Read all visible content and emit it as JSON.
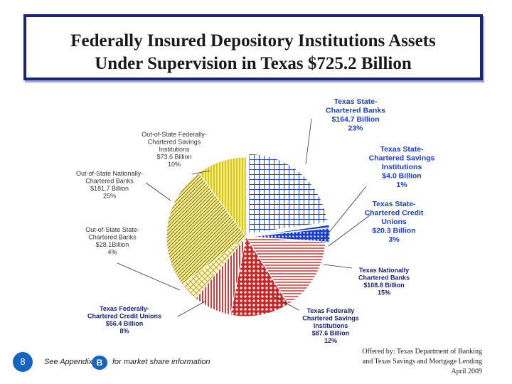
{
  "title": {
    "line1": "Federally Insured Depository Institutions Assets",
    "line2": "Under Supervision in Texas $725.2 Billion"
  },
  "colors": {
    "title_border": "#1a237e",
    "slide_num_bg": "#1565c0"
  },
  "chart_data": {
    "type": "pie",
    "title": "Federally Insured Depository Institutions Assets Under Supervision in Texas $725.2 Billion",
    "slices": [
      {
        "key": "texas_state_banks",
        "lines": [
          "Texas State-",
          "Chartered Banks",
          "$164.7 Billion",
          "23%"
        ],
        "value": 164.7,
        "percent": 23,
        "color": "#1a3fd1",
        "pattern": "grid-blue",
        "label_color": "#1a3fd1"
      },
      {
        "key": "texas_state_savings",
        "lines": [
          "Texas State-",
          "Chartered Savings",
          "Institutions",
          "$4.0 Billion",
          "1%"
        ],
        "value": 4.0,
        "percent": 1,
        "color": "#1a3fd1",
        "pattern": "solid-blue",
        "label_color": "#1a3fd1"
      },
      {
        "key": "texas_state_credit_unions",
        "lines": [
          "Texas State-",
          "Chartered Credit",
          "Unions",
          "$20.3 Billion",
          "3%"
        ],
        "value": 20.3,
        "percent": 3,
        "color": "#1a3fd1",
        "pattern": "dots-blue",
        "label_color": "#1a3fd1"
      },
      {
        "key": "texas_national_banks",
        "lines": [
          "Texas Nationally",
          "Chartered Banks",
          "$108.8 Billion",
          "15%"
        ],
        "value": 108.8,
        "percent": 15,
        "color": "#c62828",
        "pattern": "hlines-red",
        "label_color": "#1a237e"
      },
      {
        "key": "texas_federal_savings",
        "lines": [
          "Texas Federally",
          "Chartered Savings",
          "Institutions",
          "$87.6 Billion",
          "12%"
        ],
        "value": 87.6,
        "percent": 12,
        "color": "#c62828",
        "pattern": "dots-red",
        "label_color": "#1a237e"
      },
      {
        "key": "texas_federal_credit_unions",
        "lines": [
          "Texas Federally-",
          "Chartered Credit Unions",
          "$56.4 Billion",
          "8%"
        ],
        "value": 56.4,
        "percent": 8,
        "color": "#c62828",
        "pattern": "vlines-red",
        "label_color": "#1a237e"
      },
      {
        "key": "oos_state_banks",
        "lines": [
          "Out-of-State State-",
          "Chartered Banks",
          "$28.1Billion",
          "4%"
        ],
        "value": 28.1,
        "percent": 4,
        "color": "#e8d94a",
        "pattern": "cross-yellow",
        "label_color": "#333333"
      },
      {
        "key": "oos_national_banks",
        "lines": [
          "Out-of-State Nationally-",
          "Chartered Banks",
          "$181.7 Billion",
          "25%"
        ],
        "value": 181.7,
        "percent": 25,
        "color": "#d9c93a",
        "pattern": "diag-yellow",
        "label_color": "#333333"
      },
      {
        "key": "oos_federal_savings",
        "lines": [
          "Out-of-State Federally-",
          "Chartered Savings",
          "Institutions",
          "$73.6 Billion",
          "10%"
        ],
        "value": 73.6,
        "percent": 10,
        "color": "#e8d94a",
        "pattern": "vgrid-yellow",
        "label_color": "#333333"
      }
    ]
  },
  "footer": {
    "slide_number": "8",
    "appendix_prefix": "See Appendix",
    "appendix_badge": "B",
    "appendix_suffix": "for market share information",
    "offered_line1": "Offered by: Texas Department of Banking",
    "offered_line2": "and Texas Savings and Mortgage Lending",
    "offered_line3": "April 2009"
  }
}
